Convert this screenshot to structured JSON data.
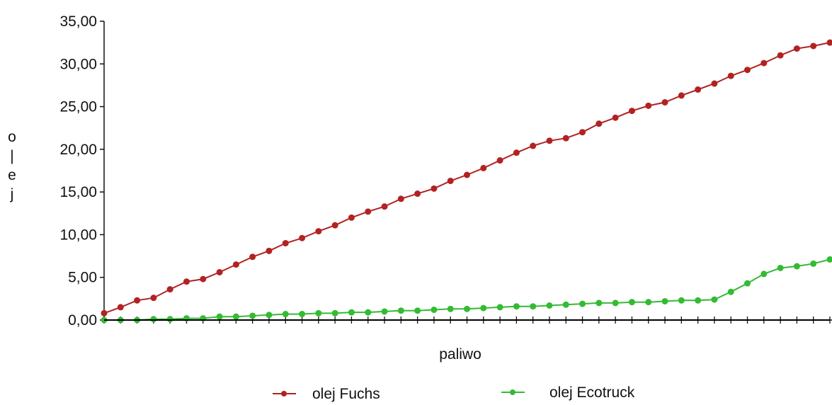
{
  "chart_data": {
    "type": "line",
    "title": "",
    "xlabel": "paliwo",
    "ylabel": "olej",
    "ylim": [
      0,
      35
    ],
    "yticks": [
      "0,00",
      "5,00",
      "10,00",
      "15,00",
      "20,00",
      "25,00",
      "30,00",
      "35,00"
    ],
    "x": [
      1,
      2,
      3,
      4,
      5,
      6,
      7,
      8,
      9,
      10,
      11,
      12,
      13,
      14,
      15,
      16,
      17,
      18,
      19,
      20,
      21,
      22,
      23,
      24,
      25,
      26,
      27,
      28,
      29,
      30,
      31,
      32,
      33,
      34,
      35,
      36,
      37,
      38,
      39,
      40,
      41,
      42,
      43,
      44,
      45
    ],
    "grid": false,
    "legend_position": "bottom",
    "series": [
      {
        "name": "olej Fuchs",
        "color": "#b22222",
        "values": [
          0.8,
          1.5,
          2.3,
          2.6,
          3.6,
          4.5,
          4.8,
          5.6,
          6.5,
          7.4,
          8.1,
          9.0,
          9.6,
          10.4,
          11.1,
          12.0,
          12.7,
          13.3,
          14.2,
          14.8,
          15.4,
          16.3,
          17.0,
          17.8,
          18.7,
          19.6,
          20.4,
          21.0,
          21.3,
          22.0,
          23.0,
          23.7,
          24.5,
          25.1,
          25.5,
          26.3,
          27.0,
          27.7,
          28.6,
          29.3,
          30.1,
          31.0,
          31.8,
          32.1,
          32.5
        ]
      },
      {
        "name": "olej Ecotruck",
        "color": "#33bb33",
        "values": [
          0.0,
          0.0,
          0.0,
          0.1,
          0.1,
          0.2,
          0.2,
          0.4,
          0.4,
          0.5,
          0.6,
          0.7,
          0.7,
          0.8,
          0.8,
          0.9,
          0.9,
          1.0,
          1.1,
          1.1,
          1.2,
          1.3,
          1.3,
          1.4,
          1.5,
          1.6,
          1.6,
          1.7,
          1.8,
          1.9,
          2.0,
          2.0,
          2.1,
          2.1,
          2.2,
          2.3,
          2.3,
          2.4,
          3.3,
          4.3,
          5.4,
          6.1,
          6.3,
          6.6,
          7.1
        ]
      },
      {
        "name": "",
        "color": "#000000",
        "values": [
          0.0,
          0.0,
          0.0,
          0.0,
          0.0,
          0.0,
          0.0,
          0.0,
          0.0,
          0.0,
          0.0,
          0.0,
          0.0,
          0.0,
          0.0,
          0.0,
          0.0,
          0.0,
          0.0,
          0.0,
          0.0,
          0.0,
          0.0,
          0.0,
          0.0,
          0.0,
          0.0,
          0.0,
          0.0,
          0.0,
          0.0,
          0.0,
          0.0,
          0.0,
          0.0,
          0.0,
          0.0,
          0.0,
          0.0,
          0.0,
          0.0,
          0.0,
          0.0,
          0.0,
          0.0
        ]
      }
    ]
  }
}
